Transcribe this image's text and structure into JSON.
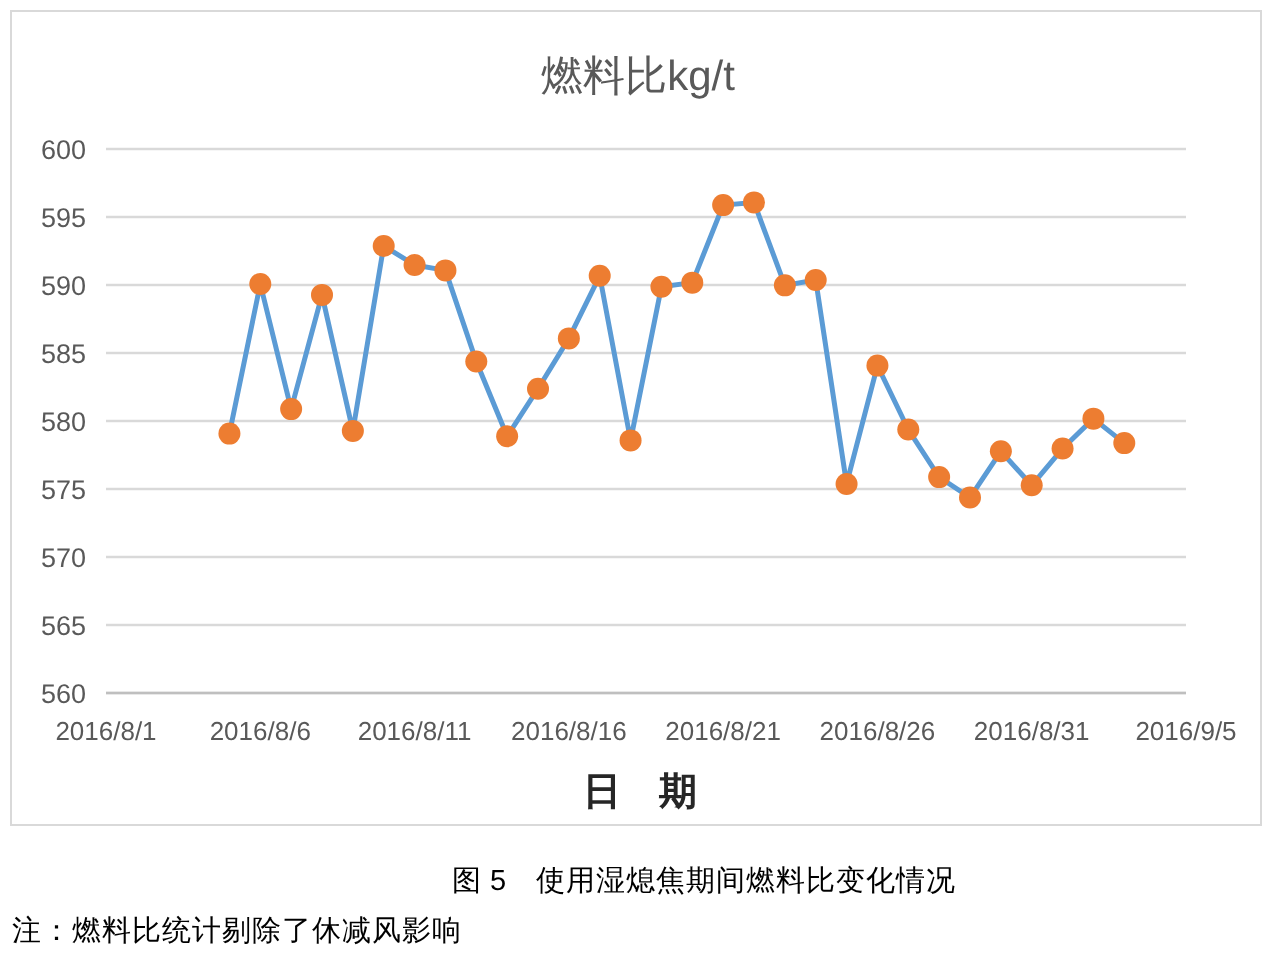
{
  "chart_data": {
    "type": "line",
    "title": "燃料比kg/t",
    "xlabel": "日　期",
    "annotations": [
      "图 5　使用湿熄焦期间燃料比变化情况",
      "注：燃料比统计剔除了休减风影响"
    ],
    "x": [
      "2016-08-05",
      "2016-08-06",
      "2016-08-07",
      "2016-08-08",
      "2016-08-09",
      "2016-08-10",
      "2016-08-11",
      "2016-08-12",
      "2016-08-13",
      "2016-08-14",
      "2016-08-15",
      "2016-08-16",
      "2016-08-17",
      "2016-08-18",
      "2016-08-19",
      "2016-08-20",
      "2016-08-21",
      "2016-08-22",
      "2016-08-23",
      "2016-08-24",
      "2016-08-25",
      "2016-08-26",
      "2016-08-27",
      "2016-08-28",
      "2016-08-29",
      "2016-08-30",
      "2016-08-31",
      "2016-09-01",
      "2016-09-02",
      "2016-09-03"
    ],
    "series": [
      {
        "color": "#5b9bd5",
        "colors": [
          "#ed7d31",
          "#ed7d31",
          "#ed7d31",
          "#ed7d31",
          "#ed7d31",
          "#ed7d31",
          "#ed7d31",
          "#ed7d31",
          "#ed7d31",
          "#ed7d31",
          "#ed7d31",
          "#ed7d31",
          "#ed7d31",
          "#ed7d31",
          "#ed7d31",
          "#ed7d31",
          "#ed7d31",
          "#ed7d31",
          "#ed7d31",
          "#ed7d31",
          "#ed7d31",
          "#ed7d31",
          "#ed7d31",
          "#ed7d31",
          "#ed7d31",
          "#ed7d31",
          "#ed7d31",
          "#ed7d31",
          "#ed7d31",
          "#ed7d31"
        ],
        "values": [
          579.0,
          590.0,
          580.8,
          589.2,
          579.2,
          592.8,
          591.4,
          591.0,
          584.3,
          578.8,
          582.3,
          586.0,
          590.6,
          578.5,
          589.8,
          590.1,
          595.8,
          596.0,
          589.9,
          590.3,
          575.3,
          584.0,
          579.3,
          575.8,
          574.3,
          577.7,
          575.2,
          577.9,
          580.1,
          578.3
        ]
      }
    ],
    "xlim": [
      "2016-08-01",
      "2016-09-05"
    ],
    "xticks": [
      {
        "value": "2016-08-01",
        "label": "2016/8/1"
      },
      {
        "value": "2016-08-06",
        "label": "2016/8/6"
      },
      {
        "value": "2016-08-11",
        "label": "2016/8/11"
      },
      {
        "value": "2016-08-16",
        "label": "2016/8/16"
      },
      {
        "value": "2016-08-21",
        "label": "2016/8/21"
      },
      {
        "value": "2016-08-26",
        "label": "2016/8/26"
      },
      {
        "value": "2016-08-31",
        "label": "2016/8/31"
      },
      {
        "value": "2016-09-05",
        "label": "2016/9/5"
      }
    ],
    "ylim": [
      560,
      600
    ],
    "yticks": [
      560,
      565,
      570,
      575,
      580,
      585,
      590,
      595,
      600
    ],
    "grid": "y",
    "marker": "circle",
    "line_style": "solid"
  }
}
